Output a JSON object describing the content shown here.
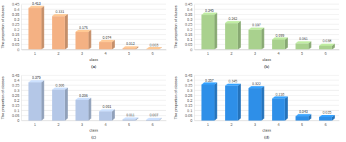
{
  "chart_data": [
    {
      "type": "bar",
      "title": "(a)",
      "x_label": "class",
      "y_label": "The proportion of classes",
      "categories": [
        "1",
        "2",
        "3",
        "4",
        "5",
        "6"
      ],
      "values": [
        0.413,
        0.331,
        0.175,
        0.074,
        0.012,
        0.003
      ],
      "color": "#f4b183",
      "ylim": [
        0,
        0.45
      ],
      "yticks": [
        0,
        0.05,
        0.1,
        0.15,
        0.2,
        0.25,
        0.3,
        0.35,
        0.4,
        0.45
      ],
      "grid": true,
      "data_labels": true
    },
    {
      "type": "bar",
      "title": "(b)",
      "x_label": "class",
      "y_label": "The proportion of classes",
      "categories": [
        "1",
        "2",
        "3",
        "4",
        "5",
        "6"
      ],
      "values": [
        0.345,
        0.262,
        0.197,
        0.099,
        0.061,
        0.038
      ],
      "color": "#a9d18e",
      "ylim": [
        0,
        0.45
      ],
      "yticks": [
        0,
        0.05,
        0.1,
        0.15,
        0.2,
        0.25,
        0.3,
        0.35,
        0.4,
        0.45
      ],
      "grid": true,
      "data_labels": true
    },
    {
      "type": "bar",
      "title": "(c)",
      "x_label": "class",
      "y_label": "The proportion of classes",
      "categories": [
        "1",
        "2",
        "3",
        "4",
        "5",
        "6"
      ],
      "values": [
        0.379,
        0.306,
        0.206,
        0.091,
        0.011,
        0.007
      ],
      "color": "#b4c7e7",
      "ylim": [
        0,
        0.45
      ],
      "yticks": [
        0,
        0.05,
        0.1,
        0.15,
        0.2,
        0.25,
        0.3,
        0.35,
        0.4,
        0.45
      ],
      "grid": true,
      "data_labels": true
    },
    {
      "type": "bar",
      "title": "(d)",
      "x_label": "class",
      "y_label": "The proportion of classes",
      "categories": [
        "1",
        "2",
        "3",
        "4",
        "5",
        "6"
      ],
      "values": [
        0.357,
        0.345,
        0.322,
        0.218,
        0.043,
        0.035
      ],
      "color": "#2e8fe8",
      "ylim": [
        0,
        0.45
      ],
      "yticks": [
        0,
        0.05,
        0.1,
        0.15,
        0.2,
        0.25,
        0.3,
        0.35,
        0.4,
        0.45
      ],
      "grid": true,
      "data_labels": true
    }
  ]
}
